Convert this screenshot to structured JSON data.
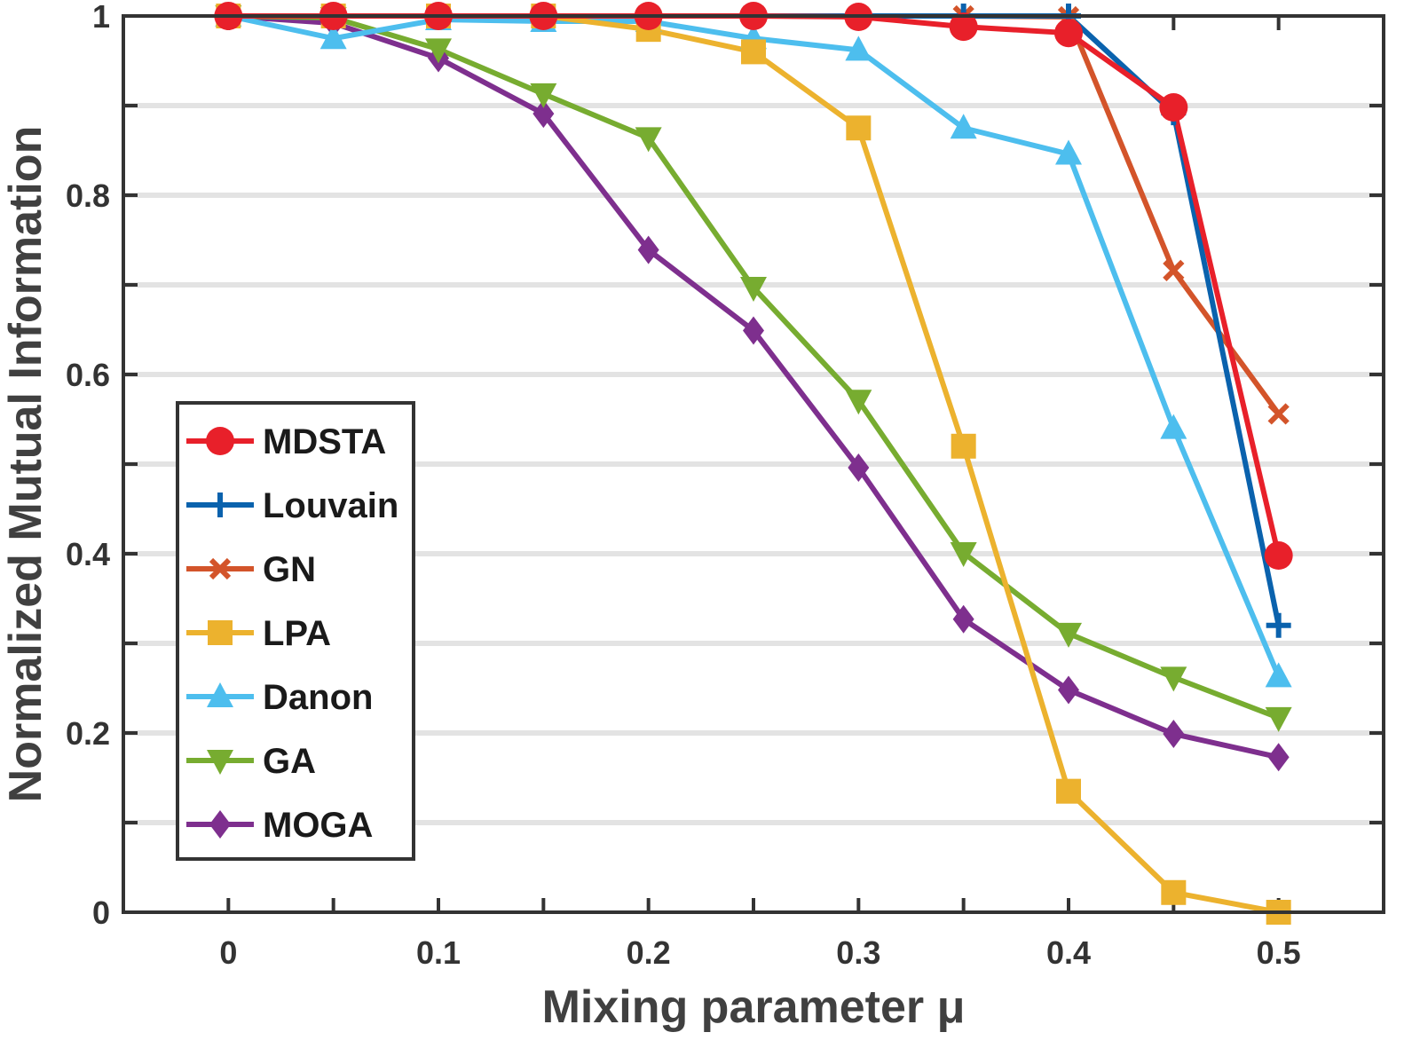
{
  "chart_data": {
    "type": "line",
    "title": "",
    "xlabel": "Mixing parameter μ",
    "ylabel": "Normalized Mutual Information",
    "x": [
      0,
      0.05,
      0.1,
      0.15,
      0.2,
      0.25,
      0.3,
      0.35,
      0.4,
      0.45,
      0.5
    ],
    "xlim": [
      -0.05,
      0.55
    ],
    "ylim": [
      0,
      1
    ],
    "xticks": [
      0,
      0.1,
      0.2,
      0.3,
      0.4,
      0.5
    ],
    "xtick_labels": [
      "0",
      "0.1",
      "0.2",
      "0.3",
      "0.4",
      "0.5"
    ],
    "yticks": [
      0,
      0.2,
      0.4,
      0.6,
      0.8,
      1
    ],
    "ytick_labels": [
      "0",
      "0.2",
      "0.4",
      "0.6",
      "0.8",
      "1"
    ],
    "grid": "horizontal",
    "legend_position": "left",
    "series": [
      {
        "name": "MDSTA",
        "color": "#e8202a",
        "marker": "circle",
        "values": [
          1.0,
          1.0,
          1.0,
          1.0,
          1.0,
          1.0,
          0.999,
          0.988,
          0.981,
          0.898,
          0.398
        ]
      },
      {
        "name": "Louvain",
        "color": "#0a62ad",
        "marker": "plus",
        "values": [
          1.0,
          1.0,
          1.0,
          1.0,
          1.0,
          1.0,
          1.0,
          1.0,
          1.0,
          0.892,
          0.32
        ]
      },
      {
        "name": "GN",
        "color": "#d3542a",
        "marker": "x",
        "values": [
          1.0,
          1.0,
          1.0,
          1.0,
          1.0,
          1.0,
          1.0,
          1.0,
          0.999,
          0.716,
          0.556
        ]
      },
      {
        "name": "LPA",
        "color": "#ecb22e",
        "marker": "square",
        "values": [
          1.0,
          1.0,
          1.0,
          1.0,
          0.985,
          0.96,
          0.875,
          0.52,
          0.135,
          0.022,
          0.0
        ]
      },
      {
        "name": "Danon",
        "color": "#4dbeee",
        "marker": "triangle-up",
        "values": [
          1.0,
          0.975,
          0.996,
          0.994,
          0.994,
          0.975,
          0.962,
          0.875,
          0.846,
          0.54,
          0.263
        ]
      },
      {
        "name": "GA",
        "color": "#77ac30",
        "marker": "triangle-down",
        "values": [
          1.0,
          0.998,
          0.963,
          0.913,
          0.864,
          0.697,
          0.571,
          0.401,
          0.311,
          0.262,
          0.217
        ]
      },
      {
        "name": "MOGA",
        "color": "#7e2f8e",
        "marker": "diamond",
        "values": [
          1.0,
          0.992,
          0.953,
          0.891,
          0.739,
          0.649,
          0.496,
          0.327,
          0.248,
          0.199,
          0.173
        ]
      }
    ]
  }
}
